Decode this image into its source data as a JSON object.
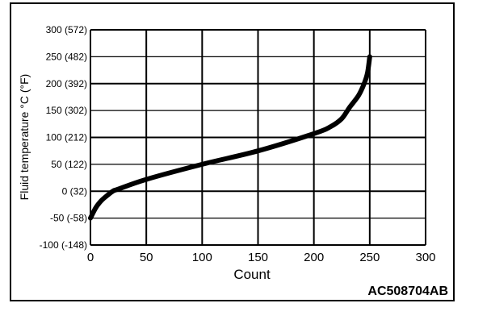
{
  "chart_data": {
    "type": "line",
    "title": "",
    "xlabel": "Count",
    "ylabel": "Fluid temperature °C (°F)",
    "xlim": [
      0,
      300
    ],
    "ylim": [
      -100,
      300
    ],
    "grid": true,
    "x_ticks": [
      "0",
      "50",
      "100",
      "150",
      "200",
      "250",
      "300"
    ],
    "x_tick_values": [
      0,
      50,
      100,
      150,
      200,
      250,
      300
    ],
    "y_ticks": [
      "300 (572)",
      "250 (482)",
      "200 (392)",
      "150 (302)",
      "100 (212)",
      "50 (122)",
      "0 (32)",
      "-50 (-58)",
      "-100 (-148)"
    ],
    "y_tick_values": [
      300,
      250,
      200,
      150,
      100,
      50,
      0,
      -50,
      -100
    ],
    "series": [
      {
        "x": [
          0,
          5,
          10,
          15,
          20,
          25,
          50,
          100,
          150,
          200,
          215,
          225,
          232,
          240,
          245,
          248,
          250
        ],
        "y": [
          -50,
          -30,
          -17,
          -8,
          0,
          4,
          22,
          50,
          75,
          107,
          120,
          135,
          156,
          178,
          200,
          220,
          250
        ]
      }
    ],
    "line_color": "#000000",
    "figure_id": "AC508704AB"
  }
}
